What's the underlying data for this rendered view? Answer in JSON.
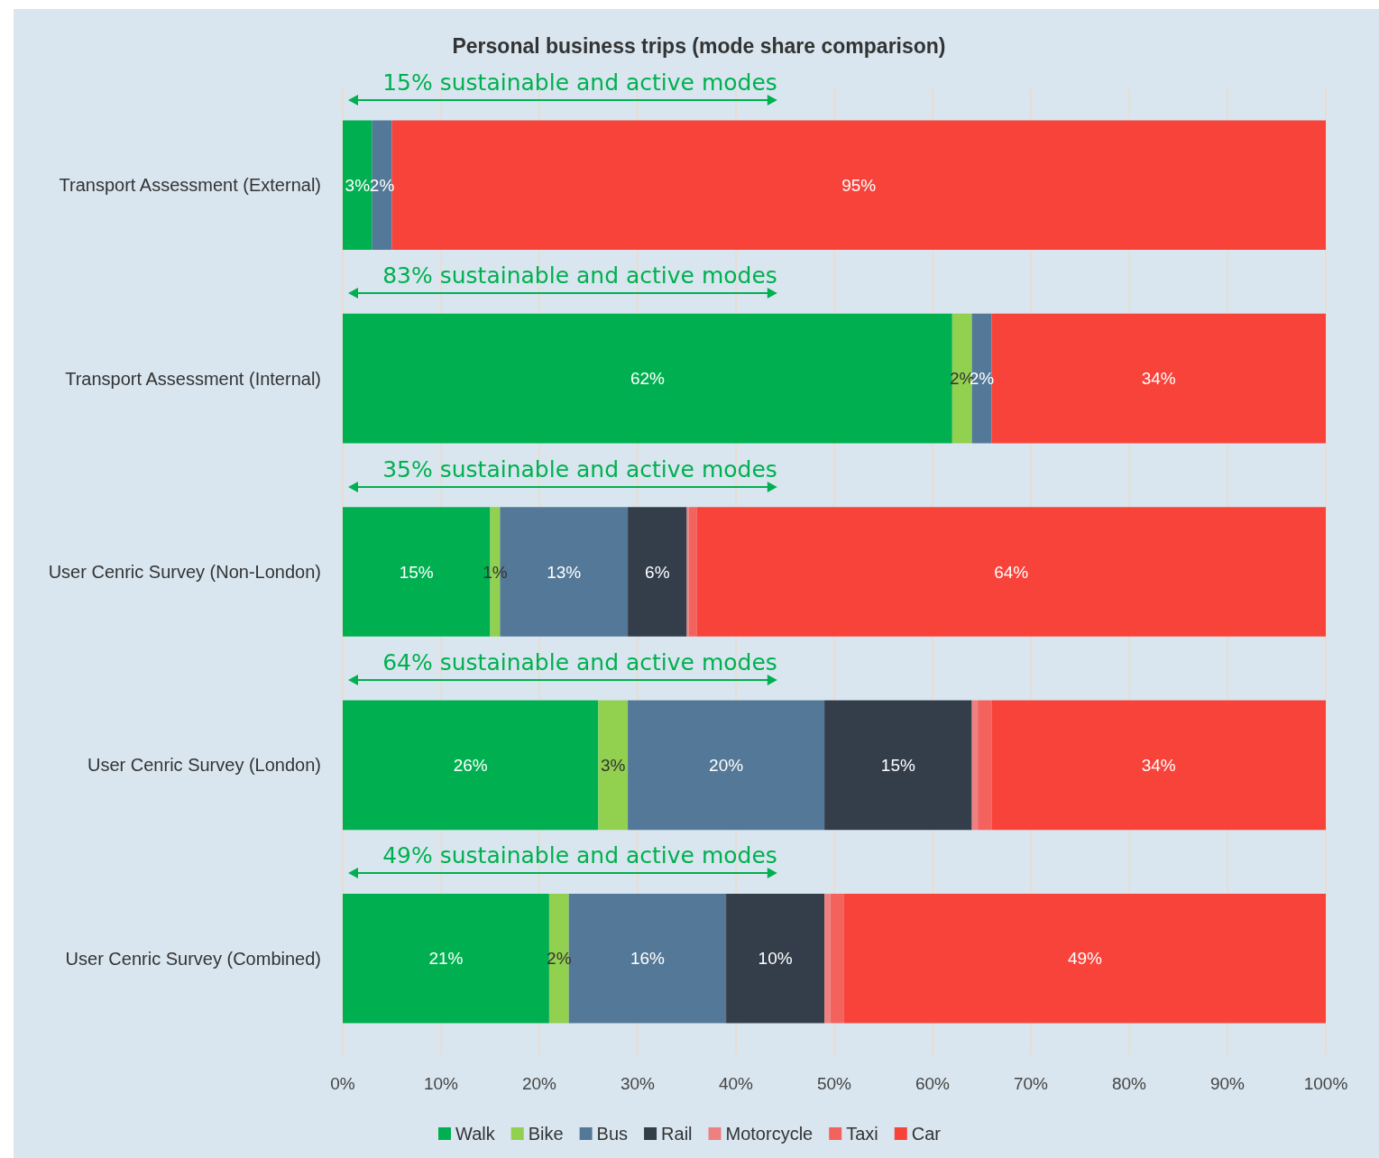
{
  "chart_data": {
    "type": "bar",
    "orientation": "horizontal",
    "stacked": true,
    "title": "Personal business trips (mode share comparison)",
    "categories": [
      "Transport Assessment (External)",
      "Transport Assessment (Internal)",
      "User Cenric Survey (Non-London)",
      "User Cenric Survey (London)",
      "User Cenric Survey (Combined)"
    ],
    "series": [
      {
        "name": "Walk",
        "color": "#00b050",
        "values": [
          3,
          62,
          15,
          26,
          21
        ],
        "value_labels": [
          "3%",
          "62%",
          "15%",
          "26%",
          "21%"
        ]
      },
      {
        "name": "Bike",
        "color": "#92d050",
        "values": [
          null,
          2,
          1,
          3,
          2
        ],
        "value_labels": [
          null,
          "2%",
          "1%",
          "3%",
          "2%"
        ]
      },
      {
        "name": "Bus",
        "color": "#547897",
        "values": [
          2,
          2,
          13,
          20,
          16
        ],
        "value_labels": [
          "2%",
          "2%",
          "13%",
          "20%",
          "16%"
        ]
      },
      {
        "name": "Rail",
        "color": "#343e4a",
        "values": [
          null,
          null,
          6,
          15,
          10
        ],
        "value_labels": [
          null,
          null,
          "6%",
          "15%",
          "10%"
        ]
      },
      {
        "name": "Motorcycle",
        "color": "#ee8080",
        "values": [
          null,
          null,
          0.2,
          0.6,
          0.6
        ]
      },
      {
        "name": "Taxi",
        "color": "#f4625e",
        "values": [
          null,
          null,
          0.8,
          1.4,
          1.4
        ]
      },
      {
        "name": "Car",
        "color": "#f8433a",
        "values": [
          95,
          34,
          64,
          34,
          49
        ],
        "value_labels": [
          "95%",
          "34%",
          "64%",
          "34%",
          "49%"
        ]
      }
    ],
    "xlim": [
      0,
      100
    ],
    "xticks": [
      {
        "value": 0,
        "label": "0%"
      },
      {
        "value": 10,
        "label": "10%"
      },
      {
        "value": 20,
        "label": "20%"
      },
      {
        "value": 30,
        "label": "30%"
      },
      {
        "value": 40,
        "label": "40%"
      },
      {
        "value": 50,
        "label": "50%"
      },
      {
        "value": 60,
        "label": "60%"
      },
      {
        "value": 70,
        "label": "70%"
      },
      {
        "value": 80,
        "label": "80%"
      },
      {
        "value": 90,
        "label": "90%"
      },
      {
        "value": 100,
        "label": "100%"
      }
    ],
    "grid": "x",
    "legend": "bottom",
    "annotations": [
      "15% sustainable and active modes",
      "83% sustainable and active modes",
      "35% sustainable and active modes",
      "64% sustainable and active modes",
      "49% sustainable and active modes"
    ]
  }
}
